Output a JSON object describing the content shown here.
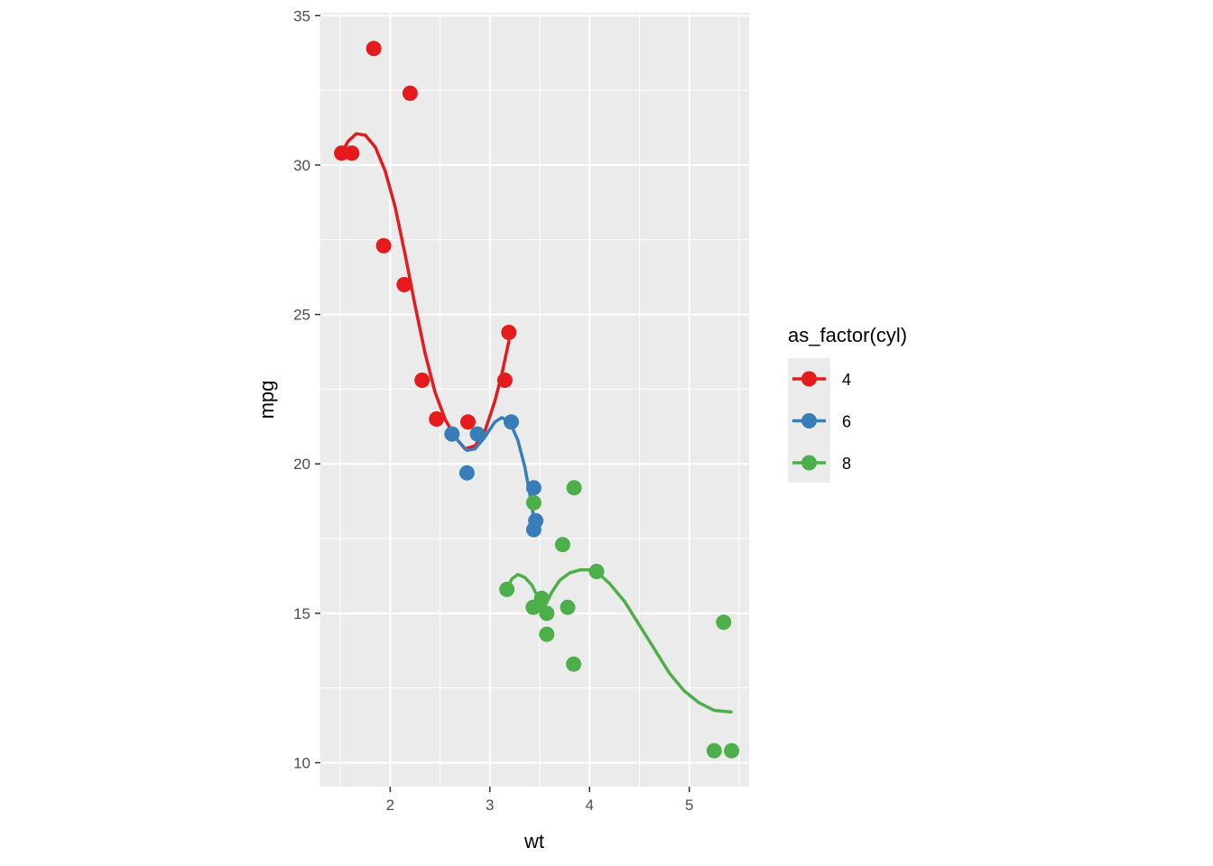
{
  "chart_data": {
    "type": "scatter",
    "title": "",
    "xlabel": "wt",
    "ylabel": "mpg",
    "xlim": [
      1.3,
      5.6
    ],
    "ylim": [
      9.2,
      35.1
    ],
    "x_ticks": [
      2,
      3,
      4,
      5
    ],
    "y_ticks": [
      10,
      15,
      20,
      25,
      30,
      35
    ],
    "x_tick_labels": [
      "2",
      "3",
      "4",
      "5"
    ],
    "y_tick_labels": [
      "10",
      "15",
      "20",
      "25",
      "30",
      "35"
    ],
    "grid": true,
    "legend": {
      "title": "as_factor(cyl)",
      "placement": "right"
    },
    "series": [
      {
        "name": "4",
        "color": "#e41a1c",
        "points": [
          [
            2.32,
            22.8
          ],
          [
            3.19,
            24.4
          ],
          [
            3.15,
            22.8
          ],
          [
            2.2,
            32.4
          ],
          [
            1.615,
            30.4
          ],
          [
            1.835,
            33.9
          ],
          [
            2.465,
            21.5
          ],
          [
            1.935,
            27.3
          ],
          [
            2.14,
            26.0
          ],
          [
            1.513,
            30.4
          ],
          [
            2.78,
            21.4
          ]
        ],
        "smooth": [
          [
            1.51,
            30.4
          ],
          [
            1.58,
            30.8
          ],
          [
            1.66,
            31.05
          ],
          [
            1.75,
            31.0
          ],
          [
            1.85,
            30.6
          ],
          [
            1.95,
            29.8
          ],
          [
            2.05,
            28.6
          ],
          [
            2.15,
            27.0
          ],
          [
            2.25,
            25.3
          ],
          [
            2.35,
            23.7
          ],
          [
            2.45,
            22.4
          ],
          [
            2.55,
            21.5
          ],
          [
            2.65,
            20.9
          ],
          [
            2.75,
            20.5
          ],
          [
            2.85,
            20.6
          ],
          [
            2.95,
            21.1
          ],
          [
            3.05,
            22.1
          ],
          [
            3.12,
            23.0
          ],
          [
            3.19,
            24.1
          ]
        ]
      },
      {
        "name": "6",
        "color": "#377eb8",
        "points": [
          [
            2.62,
            21.0
          ],
          [
            2.875,
            21.0
          ],
          [
            3.215,
            21.4
          ],
          [
            3.46,
            18.1
          ],
          [
            3.44,
            19.2
          ],
          [
            3.44,
            17.8
          ],
          [
            2.77,
            19.7
          ]
        ],
        "smooth": [
          [
            2.62,
            21.0
          ],
          [
            2.7,
            20.7
          ],
          [
            2.77,
            20.45
          ],
          [
            2.85,
            20.5
          ],
          [
            2.95,
            20.9
          ],
          [
            3.05,
            21.4
          ],
          [
            3.12,
            21.55
          ],
          [
            3.2,
            21.4
          ],
          [
            3.28,
            20.8
          ],
          [
            3.35,
            19.9
          ],
          [
            3.4,
            19.0
          ],
          [
            3.44,
            18.2
          ],
          [
            3.46,
            17.9
          ]
        ]
      },
      {
        "name": "8",
        "color": "#4daf4a",
        "points": [
          [
            3.44,
            18.7
          ],
          [
            3.57,
            14.3
          ],
          [
            4.07,
            16.4
          ],
          [
            3.73,
            17.3
          ],
          [
            3.78,
            15.2
          ],
          [
            5.25,
            10.4
          ],
          [
            5.424,
            10.4
          ],
          [
            5.345,
            14.7
          ],
          [
            3.52,
            15.5
          ],
          [
            3.435,
            15.2
          ],
          [
            3.84,
            13.3
          ],
          [
            3.845,
            19.2
          ],
          [
            3.17,
            15.8
          ],
          [
            3.57,
            15.0
          ]
        ],
        "smooth": [
          [
            3.17,
            15.8
          ],
          [
            3.22,
            16.15
          ],
          [
            3.28,
            16.3
          ],
          [
            3.35,
            16.2
          ],
          [
            3.42,
            15.95
          ],
          [
            3.48,
            15.55
          ],
          [
            3.52,
            15.2
          ],
          [
            3.56,
            15.3
          ],
          [
            3.62,
            15.7
          ],
          [
            3.7,
            16.1
          ],
          [
            3.8,
            16.35
          ],
          [
            3.9,
            16.45
          ],
          [
            4.0,
            16.45
          ],
          [
            4.1,
            16.3
          ],
          [
            4.2,
            16.0
          ],
          [
            4.35,
            15.4
          ],
          [
            4.5,
            14.6
          ],
          [
            4.65,
            13.8
          ],
          [
            4.8,
            13.0
          ],
          [
            4.95,
            12.4
          ],
          [
            5.1,
            12.0
          ],
          [
            5.25,
            11.75
          ],
          [
            5.42,
            11.7
          ]
        ]
      }
    ]
  }
}
